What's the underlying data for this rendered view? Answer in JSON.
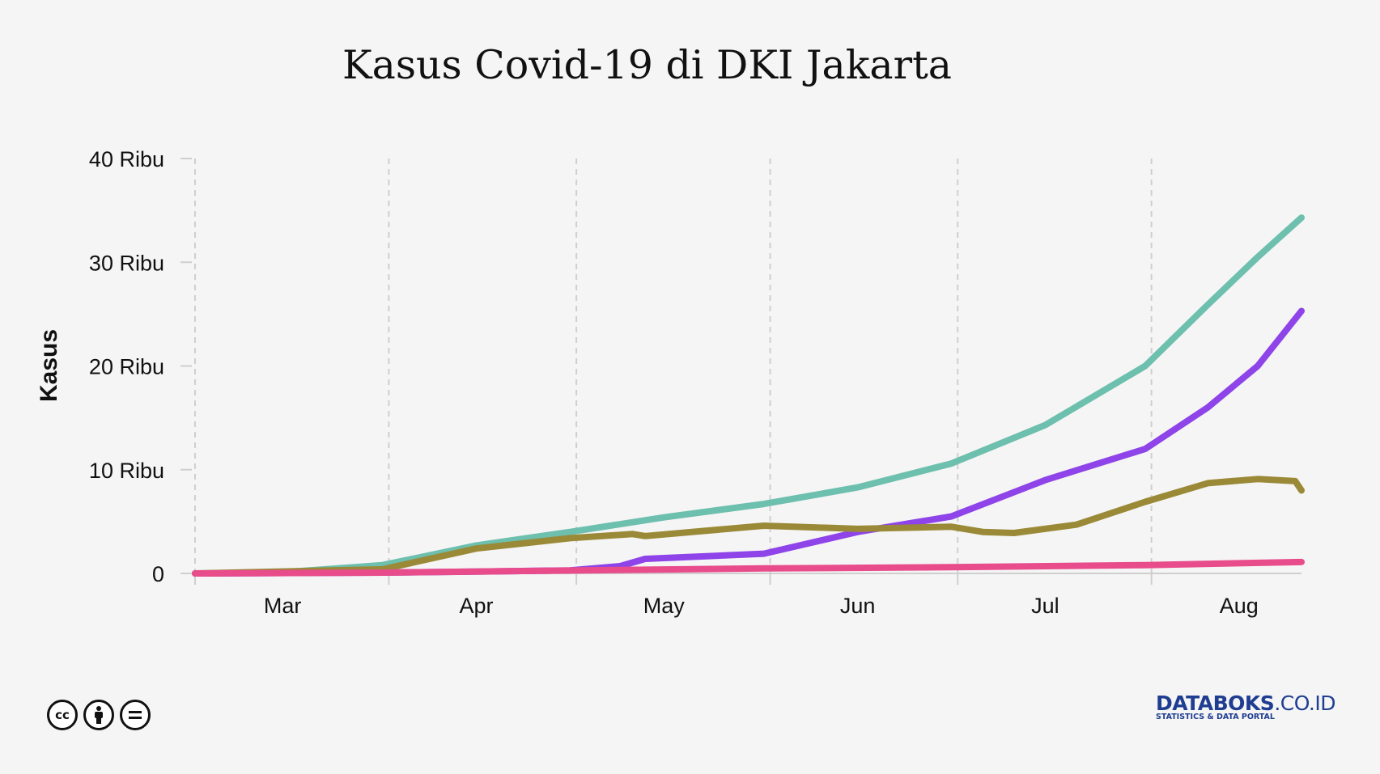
{
  "header": {
    "title": "Kasus Covid-19 di DKI Jakarta"
  },
  "chart_data": {
    "type": "line",
    "title": "Kasus Covid-19 di DKI Jakarta",
    "xlabel": "",
    "ylabel": "Kasus",
    "ylim": [
      0,
      40000
    ],
    "yticks": [
      0,
      10000,
      20000,
      30000,
      40000
    ],
    "ytick_labels": [
      "0",
      "10 Ribu",
      "20 Ribu",
      "30 Ribu",
      "40 Ribu"
    ],
    "xlim": [
      "2020-03-01",
      "2020-08-25"
    ],
    "xtick_labels": [
      "Mar",
      "Apr",
      "May",
      "Jun",
      "Jul",
      "Aug"
    ],
    "grid": "vertical dashed",
    "series": [
      {
        "color": "#6dbfae",
        "points": [
          [
            "2020-03-01",
            0
          ],
          [
            "2020-03-15",
            100
          ],
          [
            "2020-03-31",
            800
          ],
          [
            "2020-04-15",
            2700
          ],
          [
            "2020-04-30",
            4000
          ],
          [
            "2020-05-15",
            5400
          ],
          [
            "2020-05-31",
            6700
          ],
          [
            "2020-06-15",
            8300
          ],
          [
            "2020-06-30",
            10600
          ],
          [
            "2020-07-15",
            14300
          ],
          [
            "2020-07-31",
            20000
          ],
          [
            "2020-08-10",
            25900
          ],
          [
            "2020-08-18",
            30500
          ],
          [
            "2020-08-25",
            34300
          ]
        ]
      },
      {
        "color": "#8e44e8",
        "points": [
          [
            "2020-03-01",
            0
          ],
          [
            "2020-03-31",
            80
          ],
          [
            "2020-04-15",
            180
          ],
          [
            "2020-04-30",
            300
          ],
          [
            "2020-05-08",
            700
          ],
          [
            "2020-05-12",
            1400
          ],
          [
            "2020-05-31",
            1900
          ],
          [
            "2020-06-15",
            4000
          ],
          [
            "2020-06-30",
            5500
          ],
          [
            "2020-07-15",
            9000
          ],
          [
            "2020-07-31",
            12000
          ],
          [
            "2020-08-10",
            16000
          ],
          [
            "2020-08-18",
            20000
          ],
          [
            "2020-08-25",
            25300
          ]
        ]
      },
      {
        "color": "#9a8a38",
        "points": [
          [
            "2020-03-01",
            0
          ],
          [
            "2020-03-31",
            400
          ],
          [
            "2020-04-15",
            2400
          ],
          [
            "2020-04-30",
            3400
          ],
          [
            "2020-05-10",
            3800
          ],
          [
            "2020-05-12",
            3600
          ],
          [
            "2020-05-31",
            4600
          ],
          [
            "2020-06-15",
            4300
          ],
          [
            "2020-06-30",
            4500
          ],
          [
            "2020-07-05",
            4000
          ],
          [
            "2020-07-10",
            3900
          ],
          [
            "2020-07-20",
            4700
          ],
          [
            "2020-07-31",
            6900
          ],
          [
            "2020-08-10",
            8700
          ],
          [
            "2020-08-18",
            9100
          ],
          [
            "2020-08-24",
            8900
          ],
          [
            "2020-08-25",
            8000
          ]
        ]
      },
      {
        "color": "#e84c8b",
        "points": [
          [
            "2020-03-01",
            0
          ],
          [
            "2020-03-31",
            80
          ],
          [
            "2020-04-30",
            280
          ],
          [
            "2020-05-31",
            480
          ],
          [
            "2020-06-30",
            600
          ],
          [
            "2020-07-31",
            800
          ],
          [
            "2020-08-25",
            1100
          ]
        ]
      }
    ]
  },
  "footer": {
    "license_icons": [
      "cc-icon",
      "by-icon",
      "nd-icon"
    ],
    "brand_main": "DATABOKS",
    "brand_suffix": ".CO.ID",
    "brand_tagline": "STATISTICS & DATA PORTAL"
  }
}
